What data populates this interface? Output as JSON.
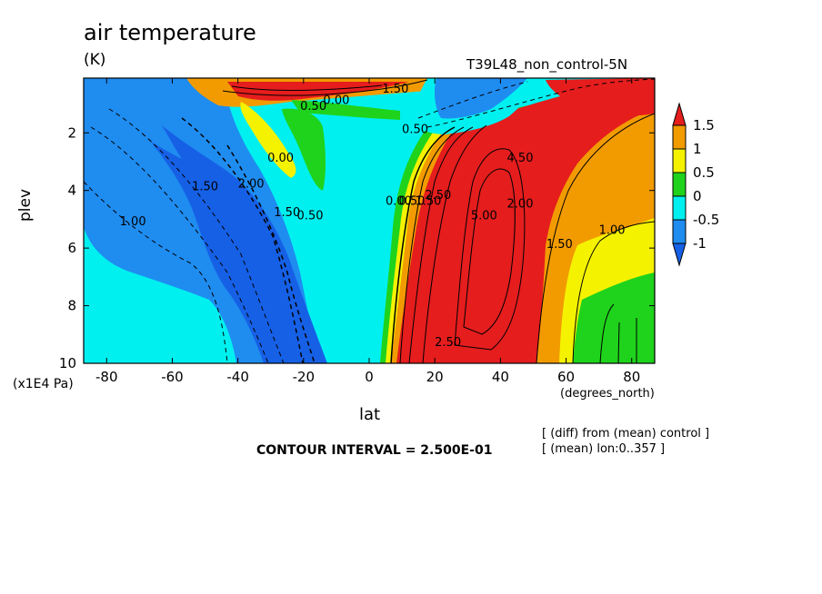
{
  "header": {
    "title": "air temperature",
    "units": "(K)",
    "run": "T39L48_non_control-5N"
  },
  "footer": {
    "contour_interval": "CONTOUR INTERVAL = 2.500E-01",
    "note1": "[ (diff) from (mean) control ]",
    "note2": "[ (mean) lon:0..357 ]"
  },
  "chart_data": {
    "type": "heatmap",
    "title": "air temperature",
    "xlabel": "lat",
    "x_units": "(degrees_north)",
    "ylabel": "plev",
    "y_units": "(x1E4 Pa)",
    "xlim": [
      -87,
      87
    ],
    "ylim": [
      10,
      0.1
    ],
    "x_ticks": [
      "-80",
      "-60",
      "-40",
      "-20",
      "0",
      "20",
      "40",
      "60",
      "80"
    ],
    "y_ticks": [
      "2",
      "4",
      "6",
      "8",
      "10"
    ],
    "colorbar": {
      "labels": [
        "1.5",
        "1",
        "0.5",
        "0",
        "-0.5",
        "-1"
      ],
      "colors": [
        "#e51d1d",
        "#f29b00",
        "#f5f200",
        "#1fd31c",
        "#00f0f0",
        "#1f8cf0",
        "#1660e6"
      ]
    },
    "contour_labels": [
      {
        "text": "1.00",
        "lat": -72,
        "plev": 5.2
      },
      {
        "text": "1.50",
        "lat": -50,
        "plev": 4.0
      },
      {
        "text": "2.00",
        "lat": -36,
        "plev": 3.9
      },
      {
        "text": "1.50",
        "lat": -25,
        "plev": 4.9
      },
      {
        "text": "0.50",
        "lat": -18,
        "plev": 5.0
      },
      {
        "text": "0.00",
        "lat": -27,
        "plev": 3.0
      },
      {
        "text": "0.50",
        "lat": -17,
        "plev": 1.2
      },
      {
        "text": "0.00",
        "lat": -10,
        "plev": 1.0
      },
      {
        "text": "1.50",
        "lat": 8,
        "plev": 0.6
      },
      {
        "text": "0.50",
        "lat": 14,
        "plev": 2.0
      },
      {
        "text": "0.00",
        "lat": 9,
        "plev": 4.5
      },
      {
        "text": "0.50",
        "lat": 13,
        "plev": 4.5
      },
      {
        "text": "1.50",
        "lat": 18,
        "plev": 4.5
      },
      {
        "text": "2.50",
        "lat": 21,
        "plev": 4.3
      },
      {
        "text": "5.00",
        "lat": 35,
        "plev": 5.0
      },
      {
        "text": "2.00",
        "lat": 46,
        "plev": 4.6
      },
      {
        "text": "4.50",
        "lat": 46,
        "plev": 3.0
      },
      {
        "text": "1.50",
        "lat": 58,
        "plev": 6.0
      },
      {
        "text": "1.00",
        "lat": 74,
        "plev": 5.5
      },
      {
        "text": "2.50",
        "lat": 24,
        "plev": 9.4
      }
    ]
  }
}
